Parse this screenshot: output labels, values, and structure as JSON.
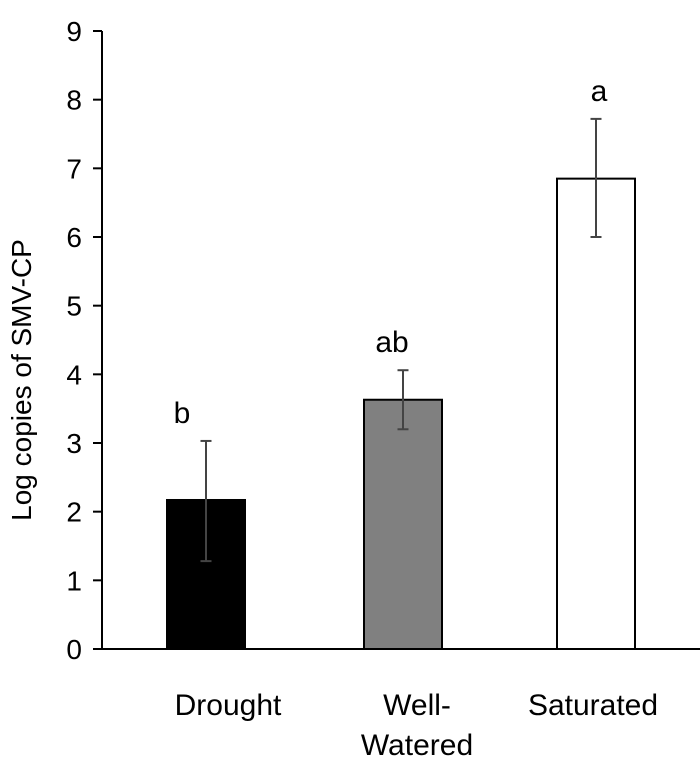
{
  "chart_data": {
    "type": "bar",
    "title": "",
    "xlabel": "",
    "ylabel": "Log copies of SMV-CP",
    "ylim": [
      0,
      9
    ],
    "yticks": [
      0,
      1,
      2,
      3,
      4,
      5,
      6,
      7,
      8,
      9
    ],
    "grid": false,
    "legend": "none",
    "categories": [
      {
        "label_lines": [
          "Drought"
        ]
      },
      {
        "label_lines": [
          "Well-",
          "Watered"
        ]
      },
      {
        "label_lines": [
          "Saturated"
        ]
      }
    ],
    "values": [
      2.17,
      3.63,
      6.85
    ],
    "error": [
      {
        "low": 1.28,
        "high": 3.03
      },
      {
        "low": 3.2,
        "high": 4.06
      },
      {
        "low": 6.0,
        "high": 7.72
      }
    ],
    "significance_letters": [
      "b",
      "ab",
      "a"
    ],
    "bar_colors": [
      "#000000",
      "#808080",
      "#ffffff"
    ]
  }
}
